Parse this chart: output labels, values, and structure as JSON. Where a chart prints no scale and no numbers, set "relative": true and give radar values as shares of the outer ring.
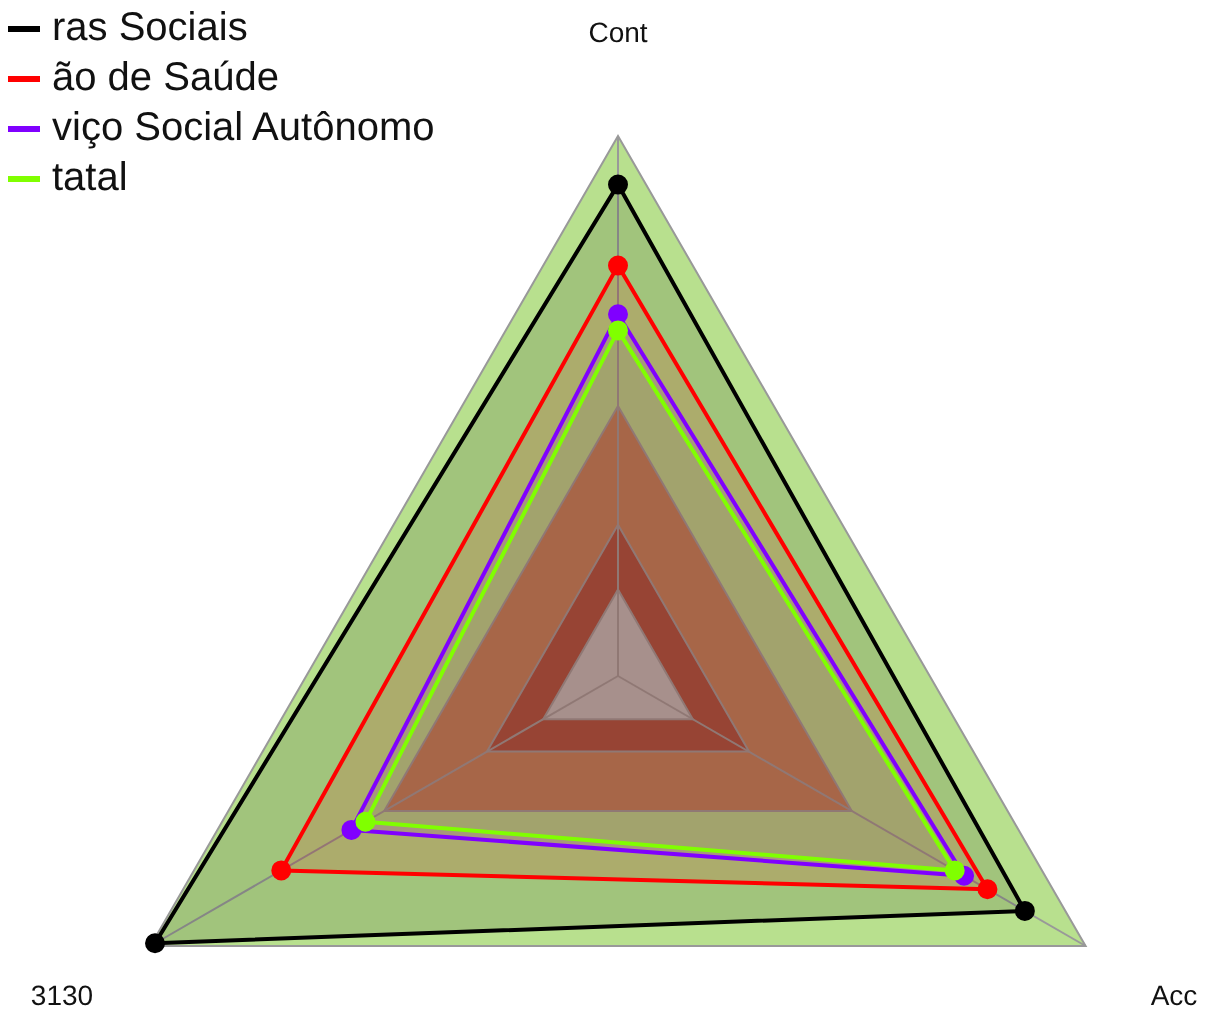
{
  "chart_data": {
    "type": "radar",
    "relative": true,
    "categories": [
      "Cont",
      "Acc",
      "3130"
    ],
    "series": [
      {
        "name": "ras Sociais",
        "color": "#000000",
        "values": [
          0.91,
          0.87,
          0.99
        ]
      },
      {
        "name": "ão de Saúde",
        "color": "#ff0000",
        "values": [
          0.76,
          0.79,
          0.72
        ]
      },
      {
        "name": "viço Social Autônomo",
        "color": "#8000ff",
        "values": [
          0.67,
          0.74,
          0.57
        ]
      },
      {
        "name": "tatal",
        "color": "#80ff00",
        "values": [
          0.64,
          0.72,
          0.54
        ]
      }
    ],
    "grid": false,
    "legend": "top left",
    "marker": "circle",
    "line_style": "solid"
  }
}
